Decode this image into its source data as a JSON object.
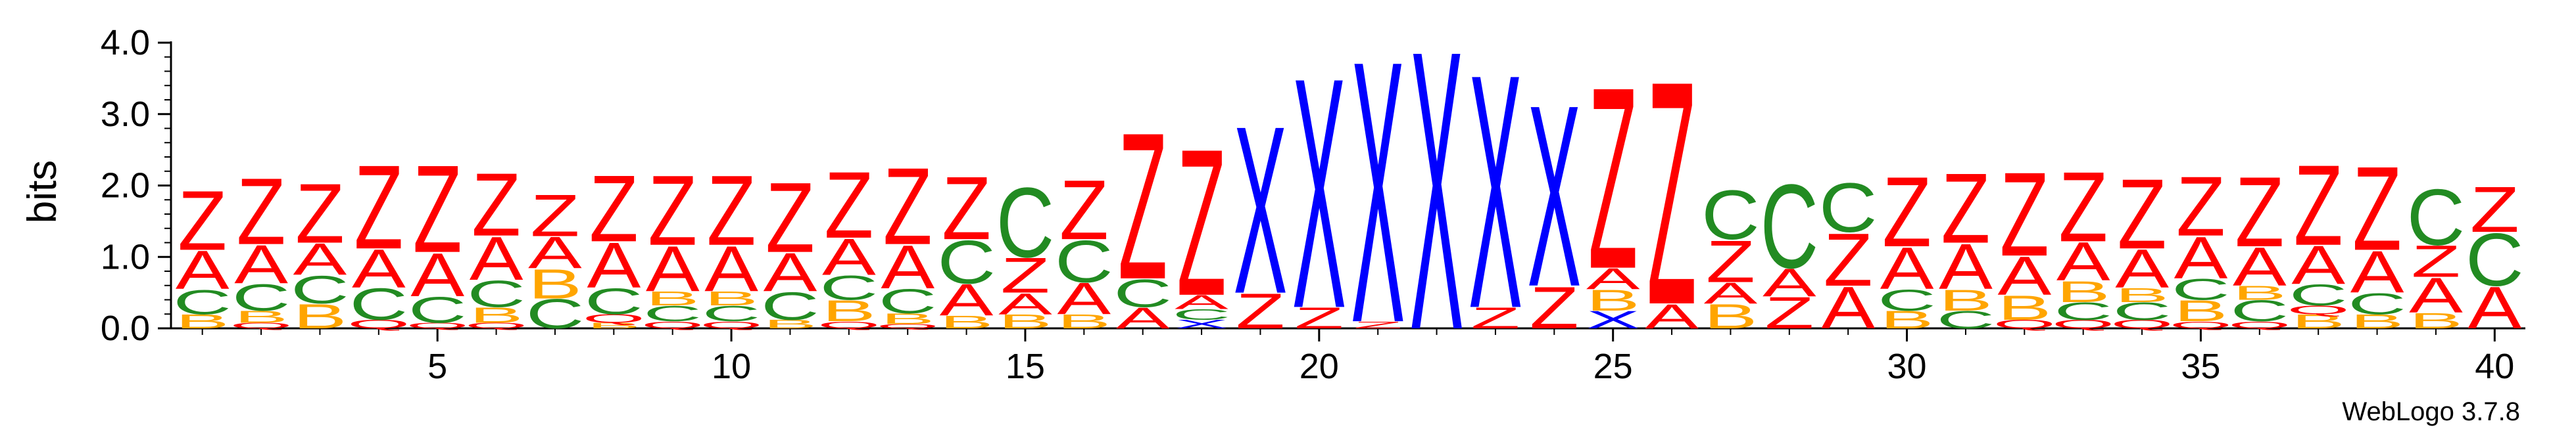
{
  "chart_data": {
    "type": "sequence-logo",
    "ylabel": "bits",
    "ylim": [
      0,
      4.0
    ],
    "y_ticks": [
      "0.0",
      "1.0",
      "2.0",
      "3.0",
      "4.0"
    ],
    "x_ticks": [
      5,
      10,
      15,
      20,
      25,
      30,
      35,
      40
    ],
    "positions": 40,
    "footer": "WebLogo 3.7.8",
    "colors": {
      "Z": "#ff0000",
      "A": "#ff0000",
      "C": "#228b22",
      "B": "#ffa500",
      "X": "#0000ff",
      "Q": "#ff0000"
    },
    "columns": [
      {
        "pos": 1,
        "stack": [
          [
            "B",
            0.2
          ],
          [
            "C",
            0.35
          ],
          [
            "A",
            0.55
          ],
          [
            "Z",
            0.85
          ]
        ]
      },
      {
        "pos": 2,
        "stack": [
          [
            "Q",
            0.08
          ],
          [
            "B",
            0.17
          ],
          [
            "C",
            0.38
          ],
          [
            "A",
            0.55
          ],
          [
            "Z",
            0.95
          ]
        ]
      },
      {
        "pos": 3,
        "stack": [
          [
            "B",
            0.35
          ],
          [
            "C",
            0.4
          ],
          [
            "A",
            0.45
          ],
          [
            "Z",
            0.85
          ]
        ]
      },
      {
        "pos": 4,
        "stack": [
          [
            "Q",
            0.12
          ],
          [
            "C",
            0.45
          ],
          [
            "A",
            0.55
          ],
          [
            "Z",
            1.2
          ]
        ]
      },
      {
        "pos": 5,
        "stack": [
          [
            "Q",
            0.08
          ],
          [
            "C",
            0.37
          ],
          [
            "A",
            0.62
          ],
          [
            "Z",
            1.25
          ]
        ]
      },
      {
        "pos": 6,
        "stack": [
          [
            "Q",
            0.08
          ],
          [
            "B",
            0.22
          ],
          [
            "C",
            0.38
          ],
          [
            "A",
            0.62
          ],
          [
            "Z",
            0.9
          ]
        ]
      },
      {
        "pos": 7,
        "stack": [
          [
            "C",
            0.42
          ],
          [
            "B",
            0.42
          ],
          [
            "A",
            0.45
          ],
          [
            "Z",
            0.6
          ]
        ]
      },
      {
        "pos": 8,
        "stack": [
          [
            "B",
            0.08
          ],
          [
            "Q",
            0.12
          ],
          [
            "C",
            0.37
          ],
          [
            "A",
            0.65
          ],
          [
            "Z",
            0.95
          ]
        ]
      },
      {
        "pos": 9,
        "stack": [
          [
            "Q",
            0.1
          ],
          [
            "C",
            0.22
          ],
          [
            "B",
            0.2
          ],
          [
            "A",
            0.65
          ],
          [
            "Z",
            1.0
          ]
        ]
      },
      {
        "pos": 10,
        "stack": [
          [
            "Q",
            0.1
          ],
          [
            "C",
            0.22
          ],
          [
            "B",
            0.2
          ],
          [
            "A",
            0.65
          ],
          [
            "Z",
            1.0
          ]
        ]
      },
      {
        "pos": 11,
        "stack": [
          [
            "B",
            0.12
          ],
          [
            "C",
            0.4
          ],
          [
            "A",
            0.55
          ],
          [
            "Z",
            1.0
          ]
        ]
      },
      {
        "pos": 12,
        "stack": [
          [
            "Q",
            0.1
          ],
          [
            "B",
            0.3
          ],
          [
            "C",
            0.35
          ],
          [
            "A",
            0.52
          ],
          [
            "Z",
            0.95
          ]
        ]
      },
      {
        "pos": 13,
        "stack": [
          [
            "Q",
            0.06
          ],
          [
            "B",
            0.15
          ],
          [
            "C",
            0.35
          ],
          [
            "A",
            0.62
          ],
          [
            "Z",
            1.1
          ]
        ]
      },
      {
        "pos": 14,
        "stack": [
          [
            "B",
            0.18
          ],
          [
            "A",
            0.45
          ],
          [
            "C",
            0.62
          ],
          [
            "Z",
            0.9
          ]
        ]
      },
      {
        "pos": 15,
        "stack": [
          [
            "B",
            0.2
          ],
          [
            "A",
            0.3
          ],
          [
            "Z",
            0.5
          ],
          [
            "C",
            1.0
          ]
        ]
      },
      {
        "pos": 16,
        "stack": [
          [
            "B",
            0.2
          ],
          [
            "A",
            0.45
          ],
          [
            "C",
            0.6
          ],
          [
            "Z",
            0.85
          ]
        ]
      },
      {
        "pos": 17,
        "stack": [
          [
            "A",
            0.3
          ],
          [
            "C",
            0.4
          ],
          [
            "Z",
            2.1
          ]
        ]
      },
      {
        "pos": 18,
        "stack": [
          [
            "X",
            0.12
          ],
          [
            "C",
            0.15
          ],
          [
            "A",
            0.2
          ],
          [
            "Z",
            2.1
          ]
        ]
      },
      {
        "pos": 19,
        "stack": [
          [
            "Z",
            0.5
          ],
          [
            "X",
            2.4
          ]
        ]
      },
      {
        "pos": 20,
        "stack": [
          [
            "Z",
            0.3
          ],
          [
            "X",
            3.3
          ]
        ]
      },
      {
        "pos": 21,
        "stack": [
          [
            "Z",
            0.1
          ],
          [
            "X",
            3.75
          ]
        ]
      },
      {
        "pos": 22,
        "stack": [
          [
            "X",
            4.0
          ]
        ]
      },
      {
        "pos": 23,
        "stack": [
          [
            "Z",
            0.3
          ],
          [
            "X",
            3.35
          ]
        ]
      },
      {
        "pos": 24,
        "stack": [
          [
            "Z",
            0.6
          ],
          [
            "X",
            2.6
          ]
        ]
      },
      {
        "pos": 25,
        "stack": [
          [
            "X",
            0.25
          ],
          [
            "B",
            0.3
          ],
          [
            "A",
            0.3
          ],
          [
            "Z",
            2.6
          ]
        ]
      },
      {
        "pos": 26,
        "stack": [
          [
            "A",
            0.35
          ],
          [
            "Z",
            3.2
          ]
        ]
      },
      {
        "pos": 27,
        "stack": [
          [
            "B",
            0.35
          ],
          [
            "A",
            0.3
          ],
          [
            "Z",
            0.6
          ],
          [
            "C",
            0.7
          ]
        ]
      },
      {
        "pos": 28,
        "stack": [
          [
            "Z",
            0.45
          ],
          [
            "A",
            0.4
          ],
          [
            "C",
            1.2
          ]
        ]
      },
      {
        "pos": 29,
        "stack": [
          [
            "A",
            0.6
          ],
          [
            "Z",
            0.75
          ],
          [
            "C",
            0.7
          ]
        ]
      },
      {
        "pos": 30,
        "stack": [
          [
            "B",
            0.25
          ],
          [
            "C",
            0.3
          ],
          [
            "A",
            0.6
          ],
          [
            "Z",
            1.0
          ]
        ]
      },
      {
        "pos": 31,
        "stack": [
          [
            "C",
            0.25
          ],
          [
            "B",
            0.3
          ],
          [
            "A",
            0.65
          ],
          [
            "Z",
            1.0
          ]
        ]
      },
      {
        "pos": 32,
        "stack": [
          [
            "Q",
            0.12
          ],
          [
            "B",
            0.35
          ],
          [
            "A",
            0.55
          ],
          [
            "Z",
            1.2
          ]
        ]
      },
      {
        "pos": 33,
        "stack": [
          [
            "Q",
            0.12
          ],
          [
            "C",
            0.25
          ],
          [
            "B",
            0.3
          ],
          [
            "A",
            0.55
          ],
          [
            "Z",
            1.0
          ]
        ]
      },
      {
        "pos": 34,
        "stack": [
          [
            "Q",
            0.12
          ],
          [
            "C",
            0.25
          ],
          [
            "B",
            0.2
          ],
          [
            "A",
            0.55
          ],
          [
            "Z",
            1.0
          ]
        ]
      },
      {
        "pos": 35,
        "stack": [
          [
            "Q",
            0.1
          ],
          [
            "B",
            0.3
          ],
          [
            "C",
            0.3
          ],
          [
            "A",
            0.6
          ],
          [
            "Z",
            0.85
          ]
        ]
      },
      {
        "pos": 36,
        "stack": [
          [
            "Q",
            0.1
          ],
          [
            "C",
            0.3
          ],
          [
            "B",
            0.2
          ],
          [
            "A",
            0.55
          ],
          [
            "Z",
            1.0
          ]
        ]
      },
      {
        "pos": 37,
        "stack": [
          [
            "B",
            0.2
          ],
          [
            "Q",
            0.12
          ],
          [
            "C",
            0.3
          ],
          [
            "A",
            0.55
          ],
          [
            "Z",
            1.15
          ]
        ]
      },
      {
        "pos": 38,
        "stack": [
          [
            "B",
            0.2
          ],
          [
            "C",
            0.3
          ],
          [
            "A",
            0.6
          ],
          [
            "Z",
            1.2
          ]
        ]
      },
      {
        "pos": 39,
        "stack": [
          [
            "B",
            0.22
          ],
          [
            "A",
            0.5
          ],
          [
            "Z",
            0.45
          ],
          [
            "C",
            0.8
          ]
        ]
      },
      {
        "pos": 40,
        "stack": [
          [
            "A",
            0.6
          ],
          [
            "C",
            0.75
          ],
          [
            "Z",
            0.65
          ]
        ]
      }
    ]
  }
}
